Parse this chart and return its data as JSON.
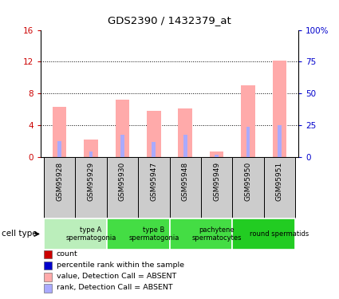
{
  "title": "GDS2390 / 1432379_at",
  "samples": [
    "GSM95928",
    "GSM95929",
    "GSM95930",
    "GSM95947",
    "GSM95948",
    "GSM95949",
    "GSM95950",
    "GSM95951"
  ],
  "pink_bars": [
    6.3,
    2.2,
    7.2,
    5.8,
    6.1,
    0.7,
    9.0,
    12.1
  ],
  "blue_bars": [
    2.0,
    0.7,
    2.8,
    1.9,
    2.8,
    0.3,
    3.8,
    4.0
  ],
  "ylim_left": [
    0,
    16
  ],
  "ylim_right": [
    0,
    100
  ],
  "yticks_left": [
    0,
    4,
    8,
    12,
    16
  ],
  "yticks_right": [
    0,
    25,
    50,
    75,
    100
  ],
  "ytick_labels_left": [
    "0",
    "4",
    "8",
    "12",
    "16"
  ],
  "ytick_labels_right": [
    "0",
    "25",
    "50",
    "75",
    "100%"
  ],
  "cell_type_groups": [
    {
      "label": "type A\nspermatogonia",
      "start": 0,
      "end": 2,
      "color": "#bbeebb"
    },
    {
      "label": "type B\nspermatogonia",
      "start": 2,
      "end": 4,
      "color": "#44dd44"
    },
    {
      "label": "pachytene\nspermatocytes",
      "start": 4,
      "end": 6,
      "color": "#44dd44"
    },
    {
      "label": "round spermatids",
      "start": 6,
      "end": 8,
      "color": "#22cc22"
    }
  ],
  "sample_box_color": "#cccccc",
  "pink_color": "#ffaaaa",
  "blue_color": "#aaaaff",
  "red_color": "#cc0000",
  "blue_dark": "#0000cc",
  "legend_items": [
    {
      "label": "count",
      "color": "#cc0000"
    },
    {
      "label": "percentile rank within the sample",
      "color": "#0000cc"
    },
    {
      "label": "value, Detection Call = ABSENT",
      "color": "#ffaaaa"
    },
    {
      "label": "rank, Detection Call = ABSENT",
      "color": "#aaaaff"
    }
  ],
  "cell_type_label": "cell type",
  "bg_color": "#ffffff",
  "axis_label_color_left": "#cc0000",
  "axis_label_color_right": "#0000cc"
}
